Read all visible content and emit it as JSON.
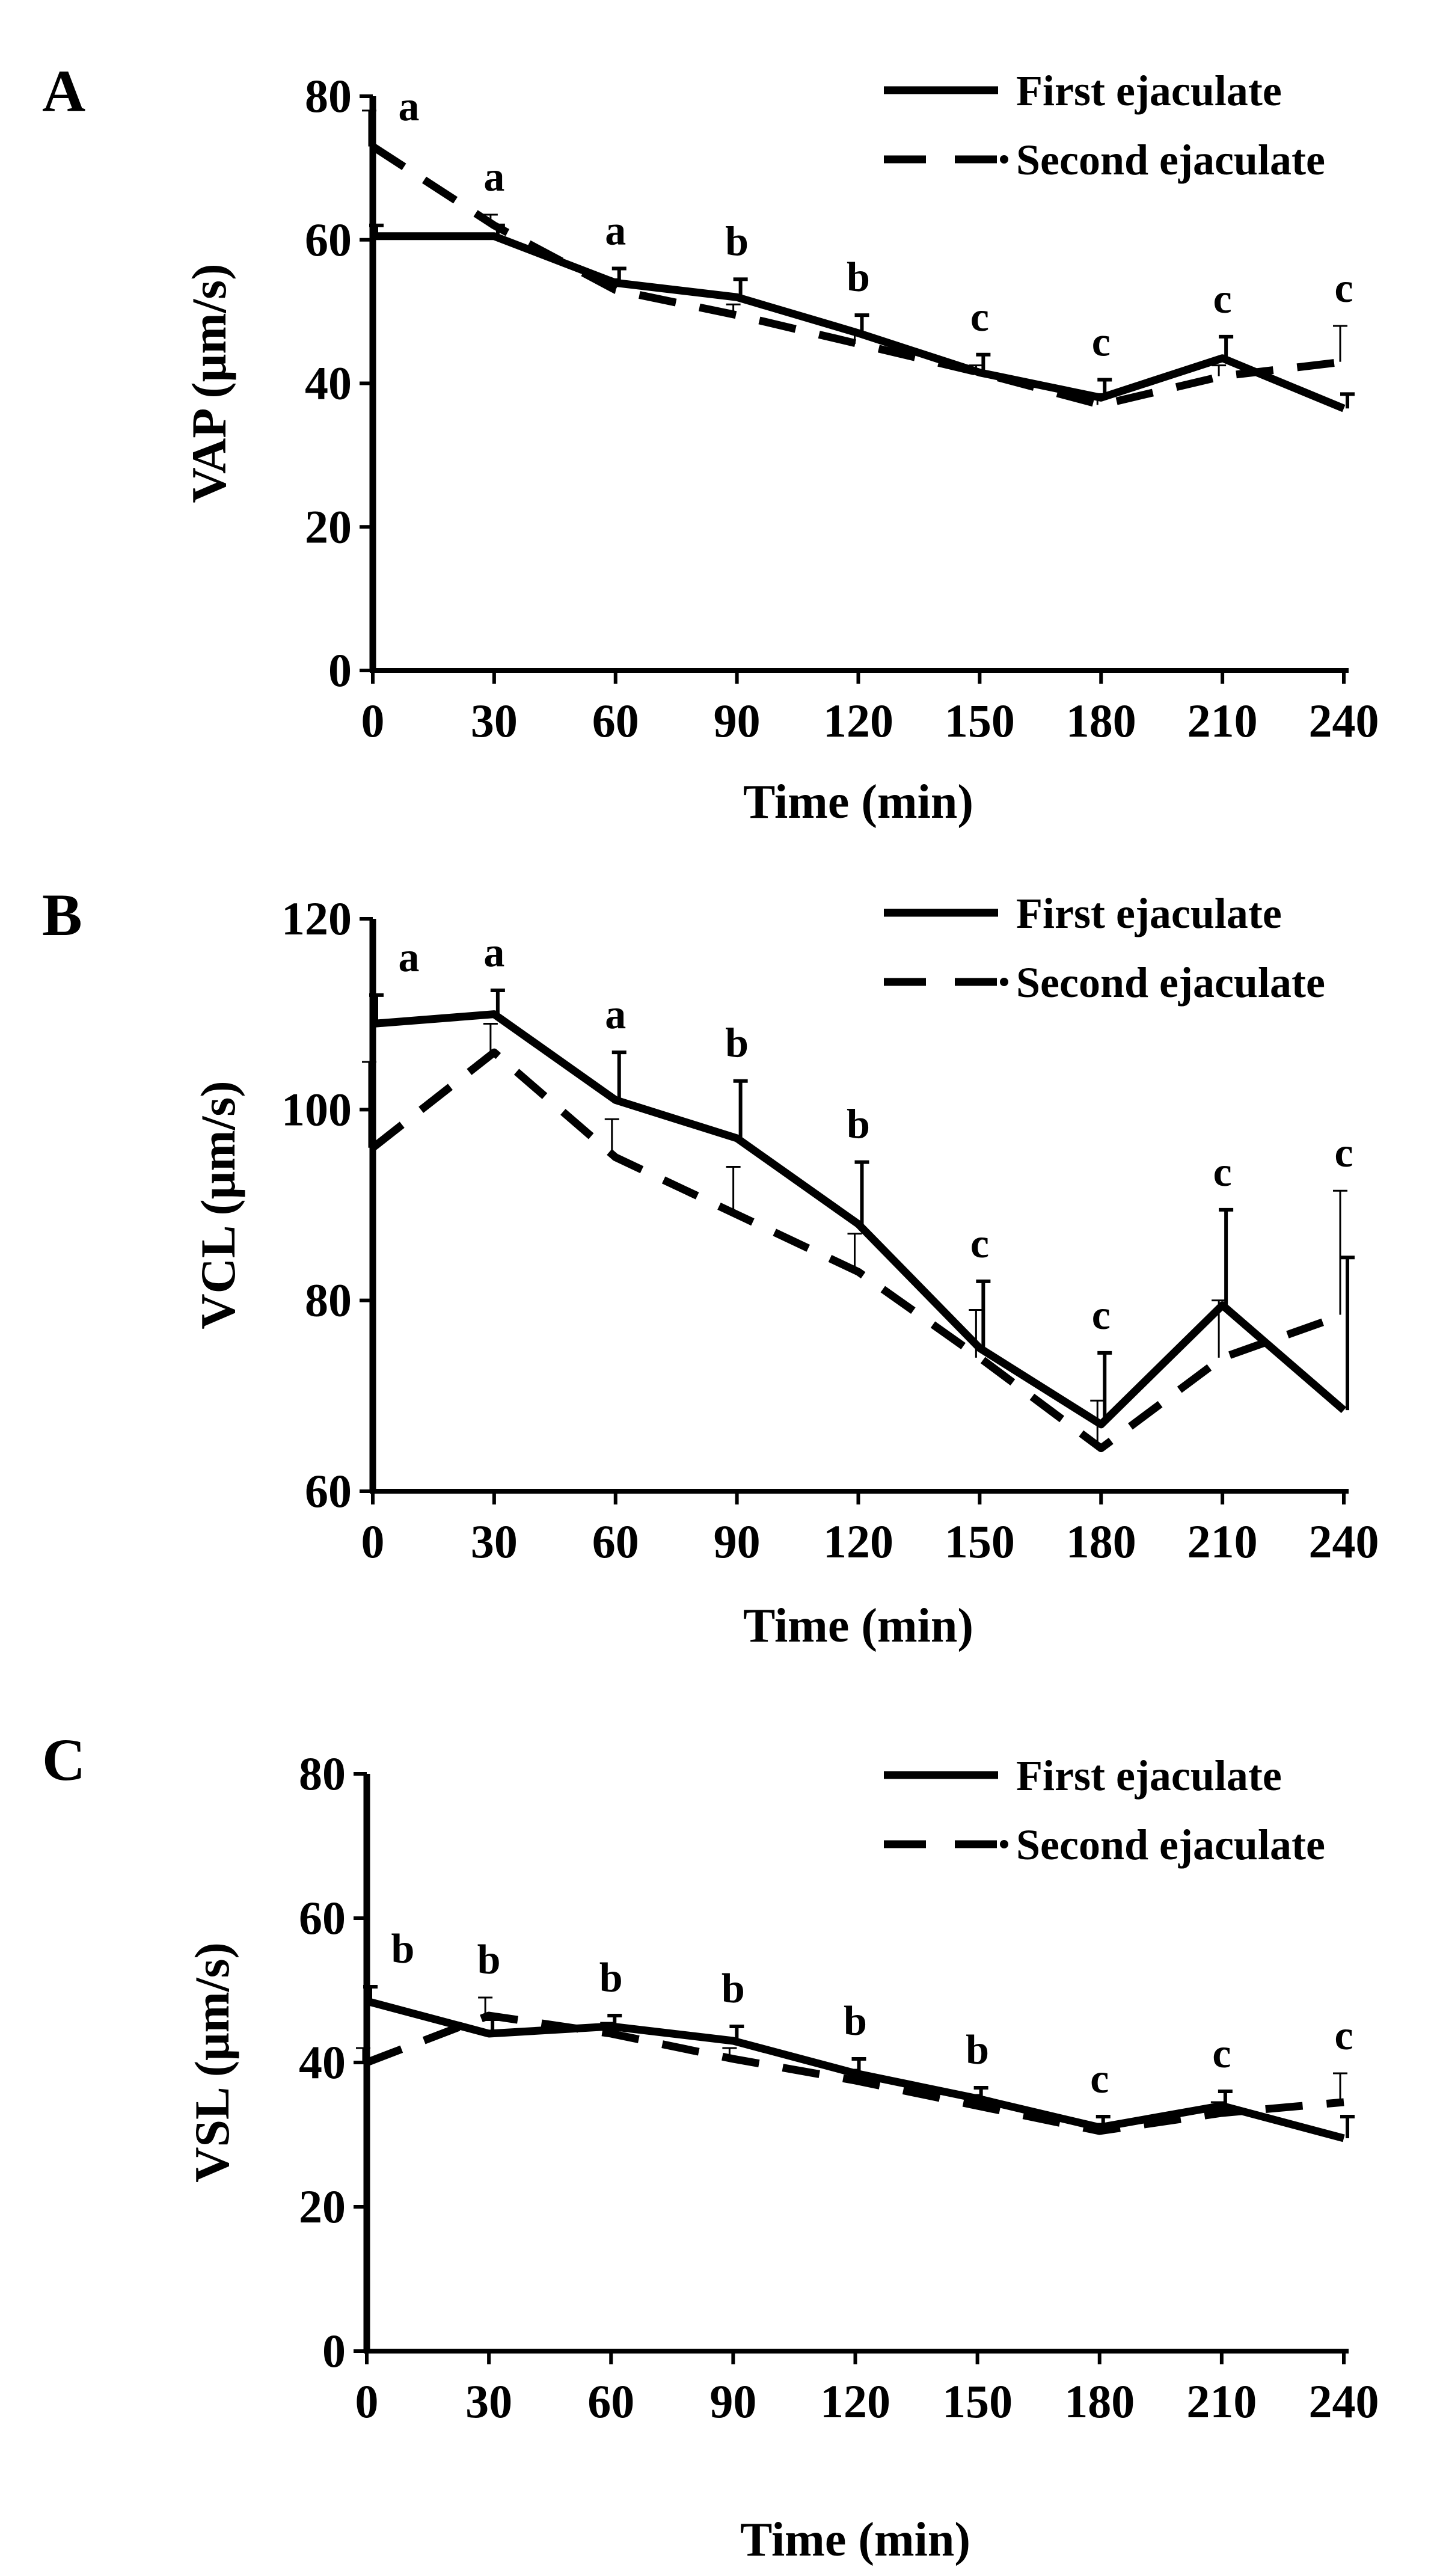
{
  "chart_data": [
    {
      "panel": "A",
      "type": "line",
      "title": "",
      "xlabel": "Time (min)",
      "ylabel": "VAP (μm/s)",
      "ylim": [
        0,
        80
      ],
      "yticks": [
        "0",
        "20",
        "40",
        "60",
        "80"
      ],
      "x": [
        0,
        30,
        60,
        90,
        120,
        150,
        180,
        210,
        240
      ],
      "xticks": [
        "0",
        "30",
        "60",
        "90",
        "120",
        "150",
        "180",
        "210",
        "240"
      ],
      "series": [
        {
          "name": "First ejaculate",
          "style": "solid",
          "values": [
            60.5,
            60.5,
            54,
            52,
            47,
            41.5,
            38,
            43.5,
            36.5
          ],
          "errors": [
            1.5,
            1.5,
            2,
            2.5,
            2.5,
            2.5,
            2.5,
            3,
            2
          ]
        },
        {
          "name": "Second ejaculate",
          "style": "dashed",
          "values": [
            73,
            62,
            53,
            49.5,
            45.5,
            41.5,
            37,
            41,
            43
          ],
          "errors": [
            5,
            1.5,
            1.5,
            1.5,
            1.5,
            1,
            1.5,
            1.5,
            5
          ]
        }
      ],
      "annotations": [
        "a",
        "a",
        "a",
        "b",
        "b",
        "c",
        "c",
        "c",
        "c"
      ],
      "legend": "top-right"
    },
    {
      "panel": "B",
      "type": "line",
      "title": "",
      "xlabel": "Time (min)",
      "ylabel": "VCL (μm/s)",
      "ylim": [
        60,
        120
      ],
      "yticks": [
        "60",
        "80",
        "100",
        "120"
      ],
      "x": [
        0,
        30,
        60,
        90,
        120,
        150,
        180,
        210,
        240
      ],
      "xticks": [
        "0",
        "30",
        "60",
        "90",
        "120",
        "150",
        "180",
        "210",
        "240"
      ],
      "series": [
        {
          "name": "First ejaculate",
          "style": "solid",
          "values": [
            109,
            110,
            101,
            97,
            88,
            75,
            67,
            79.5,
            68.5
          ],
          "errors": [
            3,
            2.5,
            5,
            6,
            6.5,
            7,
            7.5,
            10,
            16
          ]
        },
        {
          "name": "Second ejaculate",
          "style": "dashed",
          "values": [
            96,
            106,
            95,
            89,
            83,
            74,
            64.5,
            74,
            78.5
          ],
          "errors": [
            9,
            3,
            4,
            5,
            4,
            5,
            5,
            6,
            13
          ]
        }
      ],
      "annotations": [
        "a",
        "a",
        "a",
        "b",
        "b",
        "c",
        "c",
        "c",
        "c"
      ],
      "legend": "top-right"
    },
    {
      "panel": "C",
      "type": "line",
      "title": "",
      "xlabel": "Time (min)",
      "ylabel": "VSL (μm/s)",
      "ylim": [
        0,
        80
      ],
      "yticks": [
        "0",
        "20",
        "40",
        "60",
        "80"
      ],
      "x": [
        0,
        30,
        60,
        90,
        120,
        150,
        180,
        210,
        240
      ],
      "xticks": [
        "0",
        "30",
        "60",
        "90",
        "120",
        "150",
        "180",
        "210",
        "240"
      ],
      "series": [
        {
          "name": "First ejaculate",
          "style": "solid",
          "values": [
            48.5,
            44,
            45,
            43,
            38.5,
            35,
            31,
            34,
            29.5
          ],
          "errors": [
            2,
            2,
            1.5,
            2,
            2,
            1.5,
            1.5,
            2,
            3
          ]
        },
        {
          "name": "Second ejaculate",
          "style": "dashed",
          "values": [
            40,
            46.5,
            44,
            40.5,
            37.5,
            34,
            30.5,
            33,
            34.5
          ],
          "errors": [
            2,
            2.5,
            1.5,
            1.5,
            1.5,
            1.5,
            1,
            1.5,
            4
          ]
        }
      ],
      "annotations": [
        "b",
        "b",
        "b",
        "b",
        "b",
        "b",
        "c",
        "c",
        "c"
      ],
      "legend": "top-right"
    }
  ]
}
